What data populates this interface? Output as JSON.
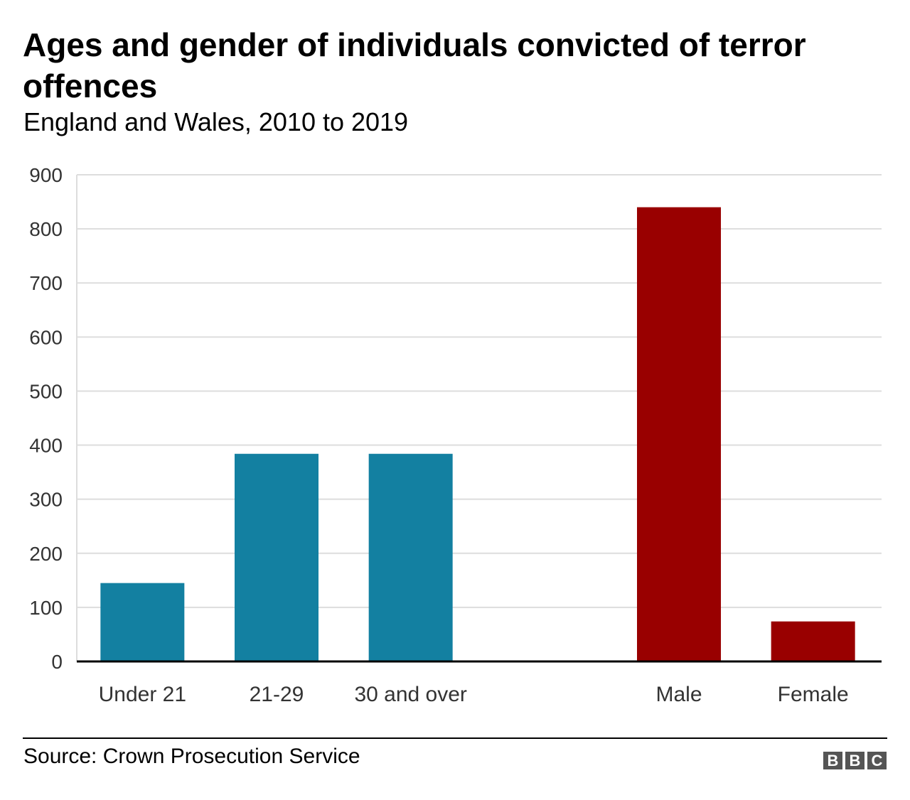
{
  "header": {
    "title": "Ages and gender of individuals convicted of terror offences",
    "subtitle": "England and Wales, 2010 to 2019"
  },
  "chart_data": {
    "type": "bar",
    "title": "Ages and gender of individuals convicted of terror offences",
    "subtitle": "England and Wales, 2010 to 2019",
    "xlabel": "",
    "ylabel": "",
    "ylim": [
      0,
      900
    ],
    "yticks": [
      0,
      100,
      200,
      300,
      400,
      500,
      600,
      700,
      800,
      900
    ],
    "grid": true,
    "legend": "none",
    "categories": [
      "Under 21",
      "21-29",
      "30 and over",
      "Male",
      "Female"
    ],
    "values": [
      145,
      384,
      384,
      840,
      74
    ],
    "groups": [
      {
        "name": "age",
        "categories": [
          "Under 21",
          "21-29",
          "30 and over"
        ],
        "color": "#1380a1"
      },
      {
        "name": "gender",
        "categories": [
          "Male",
          "Female"
        ],
        "color": "#990000"
      }
    ],
    "colors": {
      "age": "#1380a1",
      "gender": "#990000",
      "grid": "#dddddd",
      "axis": "#000000",
      "tick_text": "#333333"
    }
  },
  "footer": {
    "source": "Source: Crown Prosecution Service",
    "logo_letters": [
      "B",
      "B",
      "C"
    ]
  }
}
